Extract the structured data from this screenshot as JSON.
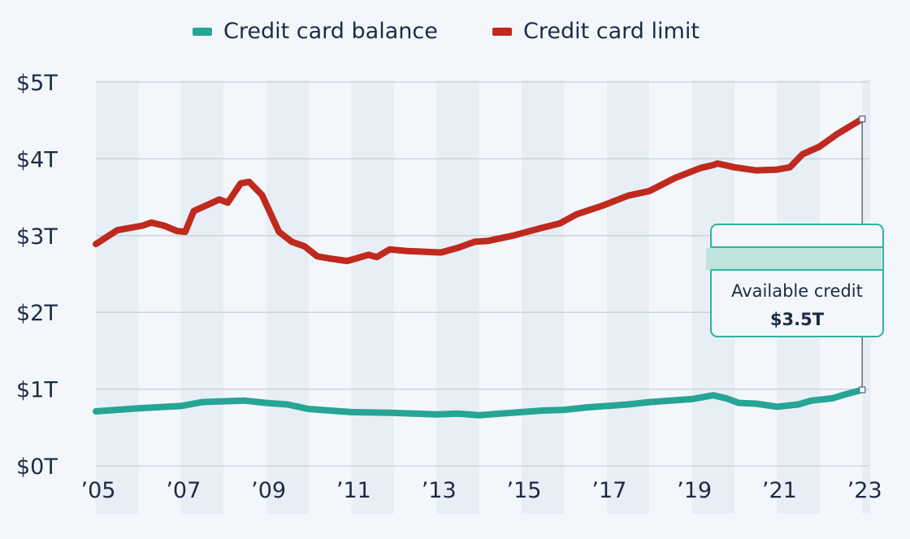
{
  "chart_data": {
    "type": "line",
    "title": "",
    "xlabel": "",
    "ylabel": "",
    "xlim": [
      2005,
      2023
    ],
    "ylim": [
      0,
      5
    ],
    "grid": true,
    "legend_position": "top",
    "y_ticks": [
      0,
      1,
      2,
      3,
      4,
      5
    ],
    "y_tick_labels": [
      "$0T",
      "$1T",
      "$2T",
      "$3T",
      "$4T",
      "$5T"
    ],
    "x_ticks": [
      2005,
      2007,
      2009,
      2011,
      2013,
      2015,
      2017,
      2019,
      2021,
      2023
    ],
    "x_tick_labels": [
      "’05",
      "’07",
      "’09",
      "’11",
      "’13",
      "’15",
      "’17",
      "’19",
      "’21",
      "’23"
    ],
    "series": [
      {
        "name": "Credit card balance",
        "color": "#26a595",
        "x": [
          2005.0,
          2006.0,
          2007.0,
          2007.5,
          2008.5,
          2009.0,
          2009.5,
          2010.0,
          2010.5,
          2011.0,
          2012.0,
          2012.5,
          2013.0,
          2013.5,
          2014.0,
          2014.5,
          2015.0,
          2015.5,
          2016.0,
          2016.5,
          2017.0,
          2017.5,
          2018.0,
          2018.5,
          2019.0,
          2019.5,
          2019.8,
          2020.1,
          2020.5,
          2021.0,
          2021.5,
          2021.8,
          2022.3,
          2022.6,
          2023.0
        ],
        "y": [
          0.71,
          0.75,
          0.78,
          0.83,
          0.85,
          0.82,
          0.8,
          0.74,
          0.72,
          0.7,
          0.69,
          0.68,
          0.67,
          0.68,
          0.66,
          0.68,
          0.7,
          0.72,
          0.73,
          0.76,
          0.78,
          0.8,
          0.83,
          0.85,
          0.87,
          0.92,
          0.88,
          0.82,
          0.81,
          0.77,
          0.8,
          0.85,
          0.88,
          0.93,
          0.99
        ]
      },
      {
        "name": "Credit card limit",
        "color": "#c0291d",
        "x": [
          2005.0,
          2005.5,
          2006.1,
          2006.3,
          2006.6,
          2006.9,
          2007.1,
          2007.3,
          2007.9,
          2008.1,
          2008.4,
          2008.6,
          2008.9,
          2009.3,
          2009.6,
          2009.9,
          2010.2,
          2010.5,
          2010.9,
          2011.1,
          2011.4,
          2011.6,
          2011.9,
          2012.3,
          2013.1,
          2013.5,
          2013.9,
          2014.2,
          2014.8,
          2015.4,
          2015.9,
          2016.3,
          2016.9,
          2017.5,
          2018.0,
          2018.6,
          2019.2,
          2019.5,
          2019.6,
          2020.0,
          2020.5,
          2021.0,
          2021.3,
          2021.6,
          2022.0,
          2022.4,
          2023.0
        ],
        "y": [
          2.89,
          3.07,
          3.13,
          3.17,
          3.13,
          3.06,
          3.05,
          3.32,
          3.47,
          3.43,
          3.68,
          3.7,
          3.53,
          3.05,
          2.92,
          2.86,
          2.73,
          2.7,
          2.67,
          2.7,
          2.75,
          2.72,
          2.82,
          2.8,
          2.78,
          2.84,
          2.92,
          2.93,
          3.0,
          3.09,
          3.16,
          3.28,
          3.39,
          3.52,
          3.58,
          3.75,
          3.88,
          3.92,
          3.94,
          3.89,
          3.85,
          3.86,
          3.89,
          4.06,
          4.16,
          4.32,
          4.52
        ]
      }
    ],
    "annotation": {
      "label": "Available credit",
      "value": "$3.5T",
      "x": 2023,
      "from": 0.99,
      "to": 4.52,
      "color": "#26a595"
    }
  }
}
